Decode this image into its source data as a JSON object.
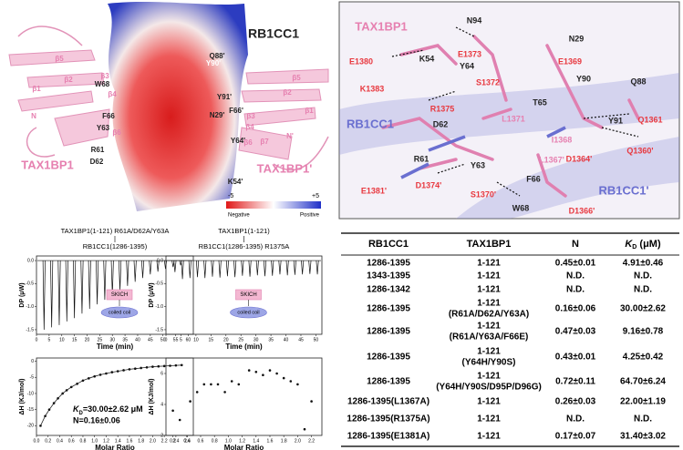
{
  "panel_a": {
    "labels": [
      {
        "text": "RB1CC1",
        "color": "#222222"
      },
      {
        "text": "TAX1BP1",
        "color": "#e680b0"
      },
      {
        "text": "TAX1BP1'",
        "color": "#e680b0"
      },
      {
        "text": "W68",
        "color": "#222222"
      },
      {
        "text": "F66",
        "color": "#222222"
      },
      {
        "text": "Y63",
        "color": "#222222"
      },
      {
        "text": "R61",
        "color": "#222222"
      },
      {
        "text": "D62",
        "color": "#222222"
      },
      {
        "text": "Y90'",
        "color": "#ffffff"
      },
      {
        "text": "Q88'",
        "color": "#222222"
      },
      {
        "text": "Y91'",
        "color": "#222222"
      },
      {
        "text": "N29'",
        "color": "#222222"
      },
      {
        "text": "F66'",
        "color": "#222222"
      },
      {
        "text": "Y64'",
        "color": "#222222"
      },
      {
        "text": "K54'",
        "color": "#222222"
      },
      {
        "text": "β5",
        "color": "#e680b0"
      },
      {
        "text": "β2",
        "color": "#e680b0"
      },
      {
        "text": "β1",
        "color": "#e680b0"
      },
      {
        "text": "β3",
        "color": "#e680b0"
      },
      {
        "text": "β4",
        "color": "#e680b0"
      },
      {
        "text": "β6",
        "color": "#e680b0"
      },
      {
        "text": "N",
        "color": "#e680b0"
      },
      {
        "text": "β5",
        "color": "#e680b0"
      },
      {
        "text": "β2",
        "color": "#e680b0"
      },
      {
        "text": "β1",
        "color": "#e680b0"
      },
      {
        "text": "β3",
        "color": "#e680b0"
      },
      {
        "text": "β4",
        "color": "#e680b0"
      },
      {
        "text": "β6",
        "color": "#e680b0"
      },
      {
        "text": "β7",
        "color": "#e680b0"
      },
      {
        "text": "N'",
        "color": "#e680b0"
      }
    ],
    "scale": {
      "min": "-5",
      "max": "+5",
      "low": "Negative",
      "high": "Positive"
    }
  },
  "panel_b": {
    "labels": [
      {
        "text": "TAX1BP1",
        "color": "#e680b0"
      },
      {
        "text": "RB1CC1",
        "color": "#6a6fd0"
      },
      {
        "text": "RB1CC1'",
        "color": "#6a6fd0"
      },
      {
        "text": "N94",
        "color": "#222222"
      },
      {
        "text": "E1380",
        "color": "#e8383f"
      },
      {
        "text": "K54",
        "color": "#222222"
      },
      {
        "text": "E1373",
        "color": "#e8383f"
      },
      {
        "text": "Y64",
        "color": "#222222"
      },
      {
        "text": "S1372",
        "color": "#e8383f"
      },
      {
        "text": "E1369",
        "color": "#e8383f"
      },
      {
        "text": "N29",
        "color": "#222222"
      },
      {
        "text": "Y90",
        "color": "#222222"
      },
      {
        "text": "Q88",
        "color": "#222222"
      },
      {
        "text": "K1383",
        "color": "#e8383f"
      },
      {
        "text": "R1375",
        "color": "#e8383f"
      },
      {
        "text": "T65",
        "color": "#222222"
      },
      {
        "text": "L1371",
        "color": "#e680b0"
      },
      {
        "text": "D62",
        "color": "#222222"
      },
      {
        "text": "I1368",
        "color": "#e680b0"
      },
      {
        "text": "Y91",
        "color": "#222222"
      },
      {
        "text": "Q1361",
        "color": "#e8383f"
      },
      {
        "text": "Q1360'",
        "color": "#e8383f"
      },
      {
        "text": "D1364'",
        "color": "#e8383f"
      },
      {
        "text": "L1367'",
        "color": "#e680b0"
      },
      {
        "text": "R61",
        "color": "#222222"
      },
      {
        "text": "Y63",
        "color": "#222222"
      },
      {
        "text": "F66",
        "color": "#222222"
      },
      {
        "text": "E1381'",
        "color": "#e8383f"
      },
      {
        "text": "D1374'",
        "color": "#e8383f"
      },
      {
        "text": "S1370'",
        "color": "#e8383f"
      },
      {
        "text": "W68",
        "color": "#222222"
      },
      {
        "text": "D1366'",
        "color": "#e8383f"
      }
    ]
  },
  "itc": [
    {
      "title": [
        "TAX1BP1(1-121) R61A/D62A/Y63A",
        "RB1CC1(1286-1395)"
      ],
      "thermogram": {
        "ylabel": "DP (μW)",
        "xlabel": "Time (min)",
        "xlim": [
          0,
          62
        ],
        "ylim": [
          -1.6,
          0.1
        ],
        "xticks": [
          0,
          5,
          10,
          15,
          20,
          25,
          30,
          35,
          40,
          45,
          50,
          55,
          60
        ],
        "yticks": [
          {
            "value": 0,
            "label": "0.0"
          },
          -0.5,
          {
            "value": -1,
            "label": "-1.0"
          },
          -1.5
        ],
        "x": [
          3,
          6,
          9,
          12,
          15,
          18,
          21,
          24,
          27,
          30,
          33,
          36,
          39,
          42,
          45,
          48,
          51,
          54,
          57
        ],
        "values": [
          -1.5,
          -1.45,
          -1.4,
          -1.32,
          -1.25,
          -1.15,
          -1.05,
          -0.95,
          -0.85,
          -0.75,
          -0.65,
          -0.55,
          -0.46,
          -0.38,
          -0.3,
          -0.24,
          -0.18,
          -0.14,
          -0.1
        ]
      },
      "inset": {
        "domain": "SKICH",
        "partner": "coiled coil"
      },
      "isotherm": {
        "ylabel": "ΔH (KJ/mol)",
        "xlabel": "Molar Ratio",
        "xlim": [
          0,
          2.7
        ],
        "ylim": [
          -23,
          1
        ],
        "xticks": [
          {
            "value": 0,
            "label": "0.0"
          },
          0.2,
          0.4,
          0.6,
          0.8,
          {
            "value": 1,
            "label": "1.0"
          },
          1.2,
          1.4,
          1.6,
          1.8,
          {
            "value": 2,
            "label": "2.0"
          },
          2.2,
          2.4,
          2.6
        ],
        "yticks": [
          0,
          -5,
          -10,
          -15,
          -20
        ],
        "x": [
          0.07,
          0.15,
          0.22,
          0.3,
          0.37,
          0.45,
          0.52,
          0.6,
          0.7,
          0.8,
          0.9,
          1.0,
          1.1,
          1.2,
          1.3,
          1.4,
          1.5,
          1.6,
          1.7,
          1.8,
          1.9,
          2.0,
          2.1,
          2.2,
          2.3,
          2.4,
          2.5
        ],
        "values": [
          -20,
          -17,
          -15,
          -13,
          -11.5,
          -10,
          -9,
          -8,
          -7,
          -6,
          -5.3,
          -4.7,
          -4.2,
          -3.8,
          -3.4,
          -3.1,
          -2.8,
          -2.5,
          -2.3,
          -2.1,
          -1.9,
          -1.7,
          -1.6,
          -1.5,
          -1.4,
          -1.3,
          -1.2
        ],
        "fit": true,
        "annotation": {
          "k": "K",
          "sub": "D",
          "kd": "=30.00±2.62 μM",
          "n": "N=0.16±0.06"
        }
      }
    },
    {
      "title": [
        "TAX1BP1(1-121)",
        "RB1CC1(1286-1395) R1375A"
      ],
      "thermogram": {
        "ylabel": "DP (μW)",
        "xlabel": "Time (min)",
        "xlim": [
          0,
          52
        ],
        "ylim": [
          -1.6,
          0.1
        ],
        "xticks": [
          0,
          5,
          10,
          15,
          20,
          25,
          30,
          35,
          40,
          45,
          50
        ],
        "yticks": [
          {
            "value": 0,
            "label": "0.0"
          },
          -0.5,
          {
            "value": -1,
            "label": "-1.0"
          },
          -1.5
        ],
        "x": [
          3,
          5.5,
          8,
          10.5,
          13,
          15.5,
          18,
          20.5,
          23,
          25.5,
          28,
          30.5,
          33,
          35.5,
          38,
          40.5,
          43,
          45.5,
          48,
          50.5
        ],
        "values": [
          -0.25,
          -0.4,
          -0.38,
          -0.36,
          -0.38,
          -0.35,
          -0.37,
          -0.34,
          -0.36,
          -0.33,
          -0.35,
          -0.32,
          -0.34,
          -0.33,
          -0.3,
          -0.32,
          -0.31,
          -0.3,
          -0.29,
          -0.3
        ]
      },
      "inset": {
        "domain": "SKICH",
        "partner": "coiled coil"
      },
      "isotherm": {
        "ylabel": "ΔH (KJ/mol)",
        "xlabel": "Molar Ratio",
        "xlim": [
          0.1,
          2.35
        ],
        "ylim": [
          2,
          7
        ],
        "xticks": [
          0.2,
          0.4,
          0.6,
          0.8,
          {
            "value": 1,
            "label": "1.0"
          },
          1.2,
          1.4,
          1.6,
          1.8,
          {
            "value": 2,
            "label": "2.0"
          },
          2.2
        ],
        "yticks": [
          2,
          4,
          6
        ],
        "x": [
          0.2,
          0.3,
          0.45,
          0.55,
          0.65,
          0.75,
          0.85,
          0.95,
          1.05,
          1.15,
          1.3,
          1.4,
          1.5,
          1.6,
          1.7,
          1.8,
          1.9,
          2.0,
          2.1,
          2.2
        ],
        "values": [
          3.6,
          3,
          4.2,
          4.8,
          5.3,
          5.3,
          5.3,
          4.8,
          5.5,
          5.3,
          6.2,
          6.1,
          5.9,
          6.2,
          6,
          5.7,
          5.5,
          5.3,
          2.4,
          4.2
        ],
        "fit": false
      }
    }
  ],
  "table": {
    "header": [
      "RB1CC1",
      "TAX1BP1",
      "N",
      "K",
      "D",
      " (μM)"
    ],
    "rows": [
      [
        "1286-1395",
        [
          "1-121"
        ],
        "0.45±0.01",
        "4.91±0.46"
      ],
      [
        "1343-1395",
        [
          "1-121"
        ],
        "N.D.",
        "N.D."
      ],
      [
        "1286-1342",
        [
          "1-121"
        ],
        "N.D.",
        "N.D."
      ],
      [
        "1286-1395",
        [
          "1-121",
          "(R61A/D62A/Y63A)"
        ],
        "0.16±0.06",
        "30.00±2.62"
      ],
      [
        "1286-1395",
        [
          "1-121",
          "(R61A/Y63A/F66E)"
        ],
        "0.47±0.03",
        "9.16±0.78"
      ],
      [
        "1286-1395",
        [
          "1-121",
          "(Y64H/Y90S)"
        ],
        "0.43±0.01",
        "4.25±0.42"
      ],
      [
        "1286-1395",
        [
          "1-121",
          "(Y64H/Y90S/D95P/D96G)"
        ],
        "0.72±0.11",
        "64.70±6.24"
      ],
      [
        "1286-1395(L1367A)",
        [
          "1-121"
        ],
        "0.26±0.03",
        "22.00±1.19"
      ],
      [
        "1286-1395(R1375A)",
        [
          "1-121"
        ],
        "N.D.",
        "N.D."
      ],
      [
        "1286-1395(E1381A)",
        [
          "1-121"
        ],
        "0.17±0.07",
        "31.40±3.02"
      ]
    ]
  }
}
